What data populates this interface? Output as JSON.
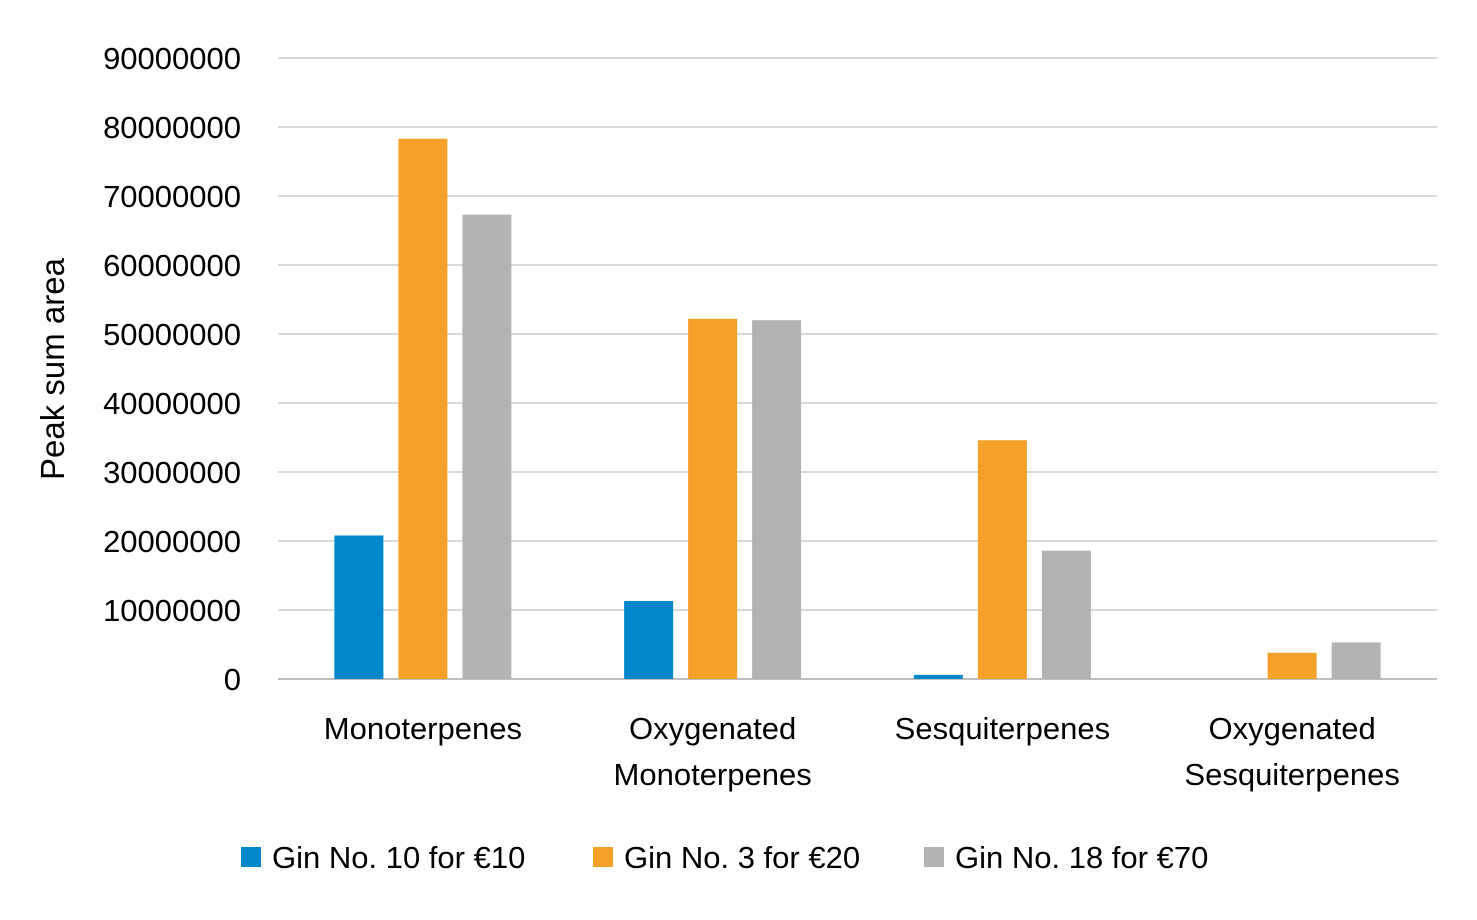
{
  "chart_data": {
    "type": "bar",
    "title": "",
    "xlabel": "",
    "ylabel": "Peak sum area",
    "ylim": [
      0,
      90000000
    ],
    "yticks": [
      0,
      10000000,
      20000000,
      30000000,
      40000000,
      50000000,
      60000000,
      70000000,
      80000000,
      90000000
    ],
    "grid": true,
    "legend_position": "bottom",
    "categories": [
      [
        "Monoterpenes"
      ],
      [
        "Oxygenated",
        "Monoterpenes"
      ],
      [
        "Sesquiterpenes"
      ],
      [
        "Oxygenated",
        "Sesquiterpenes"
      ]
    ],
    "series": [
      {
        "name": "Gin No. 10 for €10",
        "color": "#0287CC",
        "values": [
          20800000,
          11300000,
          600000,
          0
        ]
      },
      {
        "name": "Gin No. 3 for €20",
        "color": "#F5A028",
        "values": [
          78300000,
          52200000,
          34600000,
          3800000
        ]
      },
      {
        "name": "Gin No. 18 for €70",
        "color": "#B3B3B3",
        "values": [
          67300000,
          52000000,
          18600000,
          5300000
        ]
      }
    ]
  }
}
